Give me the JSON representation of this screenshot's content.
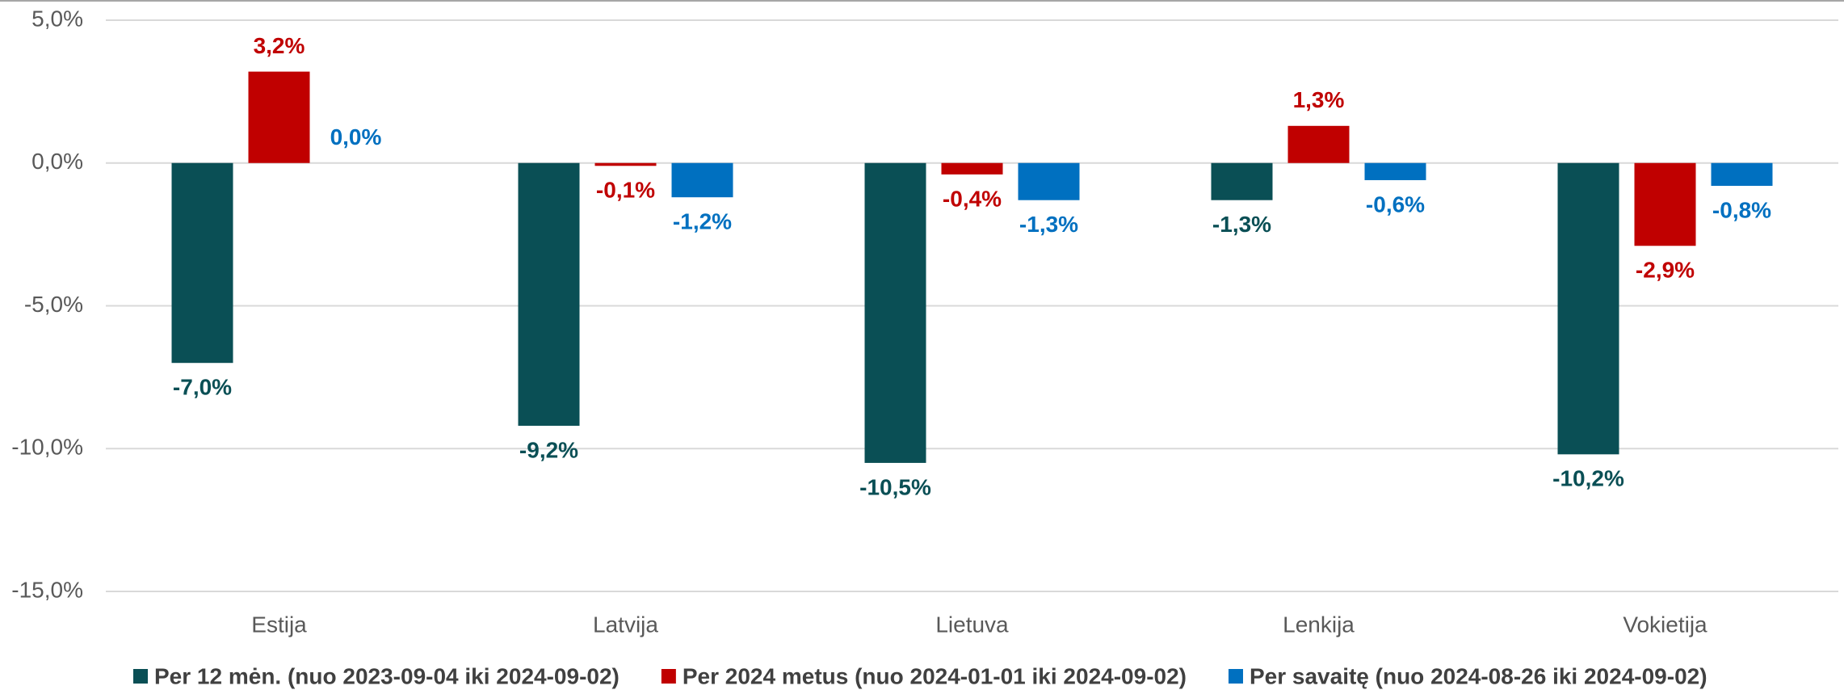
{
  "chart_data": {
    "type": "bar",
    "categories": [
      "Estija",
      "Latvija",
      "Lietuva",
      "Lenkija",
      "Vokietija"
    ],
    "series": [
      {
        "name": "Per 12 mėn. (nuo 2023-09-04 iki 2024-09-02)",
        "color": "#0a4f55",
        "values": [
          -7.0,
          -9.2,
          -10.5,
          -1.3,
          -10.2
        ],
        "value_labels": [
          "-7,0%",
          "-9,2%",
          "-10,5%",
          "-1,3%",
          "-10,2%"
        ]
      },
      {
        "name": "Per 2024 metus (nuo 2024-01-01 iki 2024-09-02)",
        "color": "#c00000",
        "values": [
          3.2,
          -0.1,
          -0.4,
          1.3,
          -2.9
        ],
        "value_labels": [
          "3,2%",
          "-0,1%",
          "-0,4%",
          "1,3%",
          "-2,9%"
        ]
      },
      {
        "name": "Per savaitę (nuo 2024-08-26 iki 2024-09-02)",
        "color": "#0070c0",
        "values": [
          0.0,
          -1.2,
          -1.3,
          -0.6,
          -0.8
        ],
        "value_labels": [
          "0,0%",
          "-1,2%",
          "-1,3%",
          "-0,6%",
          "-0,8%"
        ]
      }
    ],
    "ylim": [
      -15,
      5
    ],
    "yticks": [
      {
        "value": -15,
        "label": "-15,0%"
      },
      {
        "value": -10,
        "label": "-10,0%"
      },
      {
        "value": -5,
        "label": "-5,0%"
      },
      {
        "value": 0,
        "label": "0,0%"
      },
      {
        "value": 5,
        "label": "5,0%"
      }
    ],
    "grid": true,
    "legend": "bottom"
  }
}
